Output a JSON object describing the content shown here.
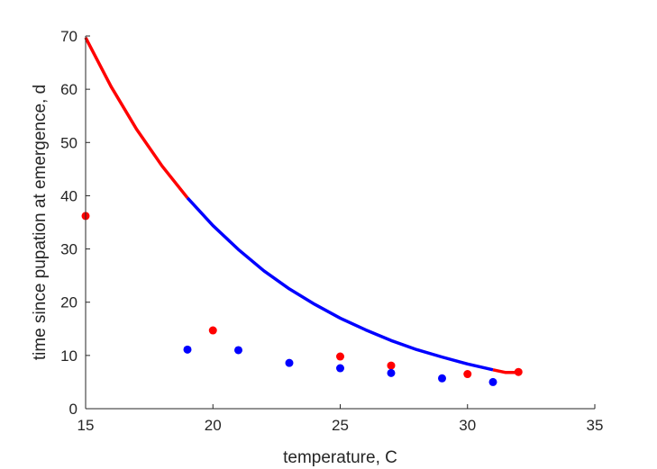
{
  "chart_data": {
    "type": "scatter",
    "title": "",
    "xlabel": "temperature, C",
    "ylabel": "time since pupation at emergence, d",
    "xlim": [
      15,
      35
    ],
    "ylim": [
      0,
      70
    ],
    "xticks": [
      15,
      20,
      25,
      30,
      35
    ],
    "yticks": [
      0,
      10,
      20,
      30,
      40,
      50,
      60,
      70
    ],
    "grid": false,
    "legend": "none",
    "colors": {
      "red": "#ff0000",
      "blue": "#0000ff",
      "axis": "#262626"
    },
    "series": [
      {
        "kind": "line",
        "color": "#ff0000",
        "x": [
          15,
          16,
          17,
          18,
          19
        ],
        "y": [
          69.7,
          60.5,
          52.5,
          45.6,
          39.6
        ]
      },
      {
        "kind": "line",
        "color": "#0000ff",
        "x": [
          19,
          20,
          21,
          22,
          23,
          24,
          25,
          26,
          27,
          28,
          29,
          30,
          31
        ],
        "y": [
          39.6,
          34.4,
          29.9,
          25.9,
          22.5,
          19.6,
          17.0,
          14.8,
          12.8,
          11.1,
          9.7,
          8.4,
          7.3
        ]
      },
      {
        "kind": "line",
        "color": "#ff0000",
        "x": [
          31,
          31.5,
          32
        ],
        "y": [
          7.3,
          6.8,
          6.8
        ]
      },
      {
        "kind": "points",
        "color": "#ff0000",
        "x": [
          15,
          20,
          25,
          27,
          30,
          32
        ],
        "y": [
          36.2,
          14.7,
          9.8,
          8.1,
          6.5,
          6.9
        ]
      },
      {
        "kind": "points",
        "color": "#0000ff",
        "x": [
          19,
          21,
          23,
          25,
          27,
          29,
          31
        ],
        "y": [
          11.1,
          11.0,
          8.6,
          7.6,
          6.7,
          5.7,
          5.0
        ]
      }
    ]
  }
}
